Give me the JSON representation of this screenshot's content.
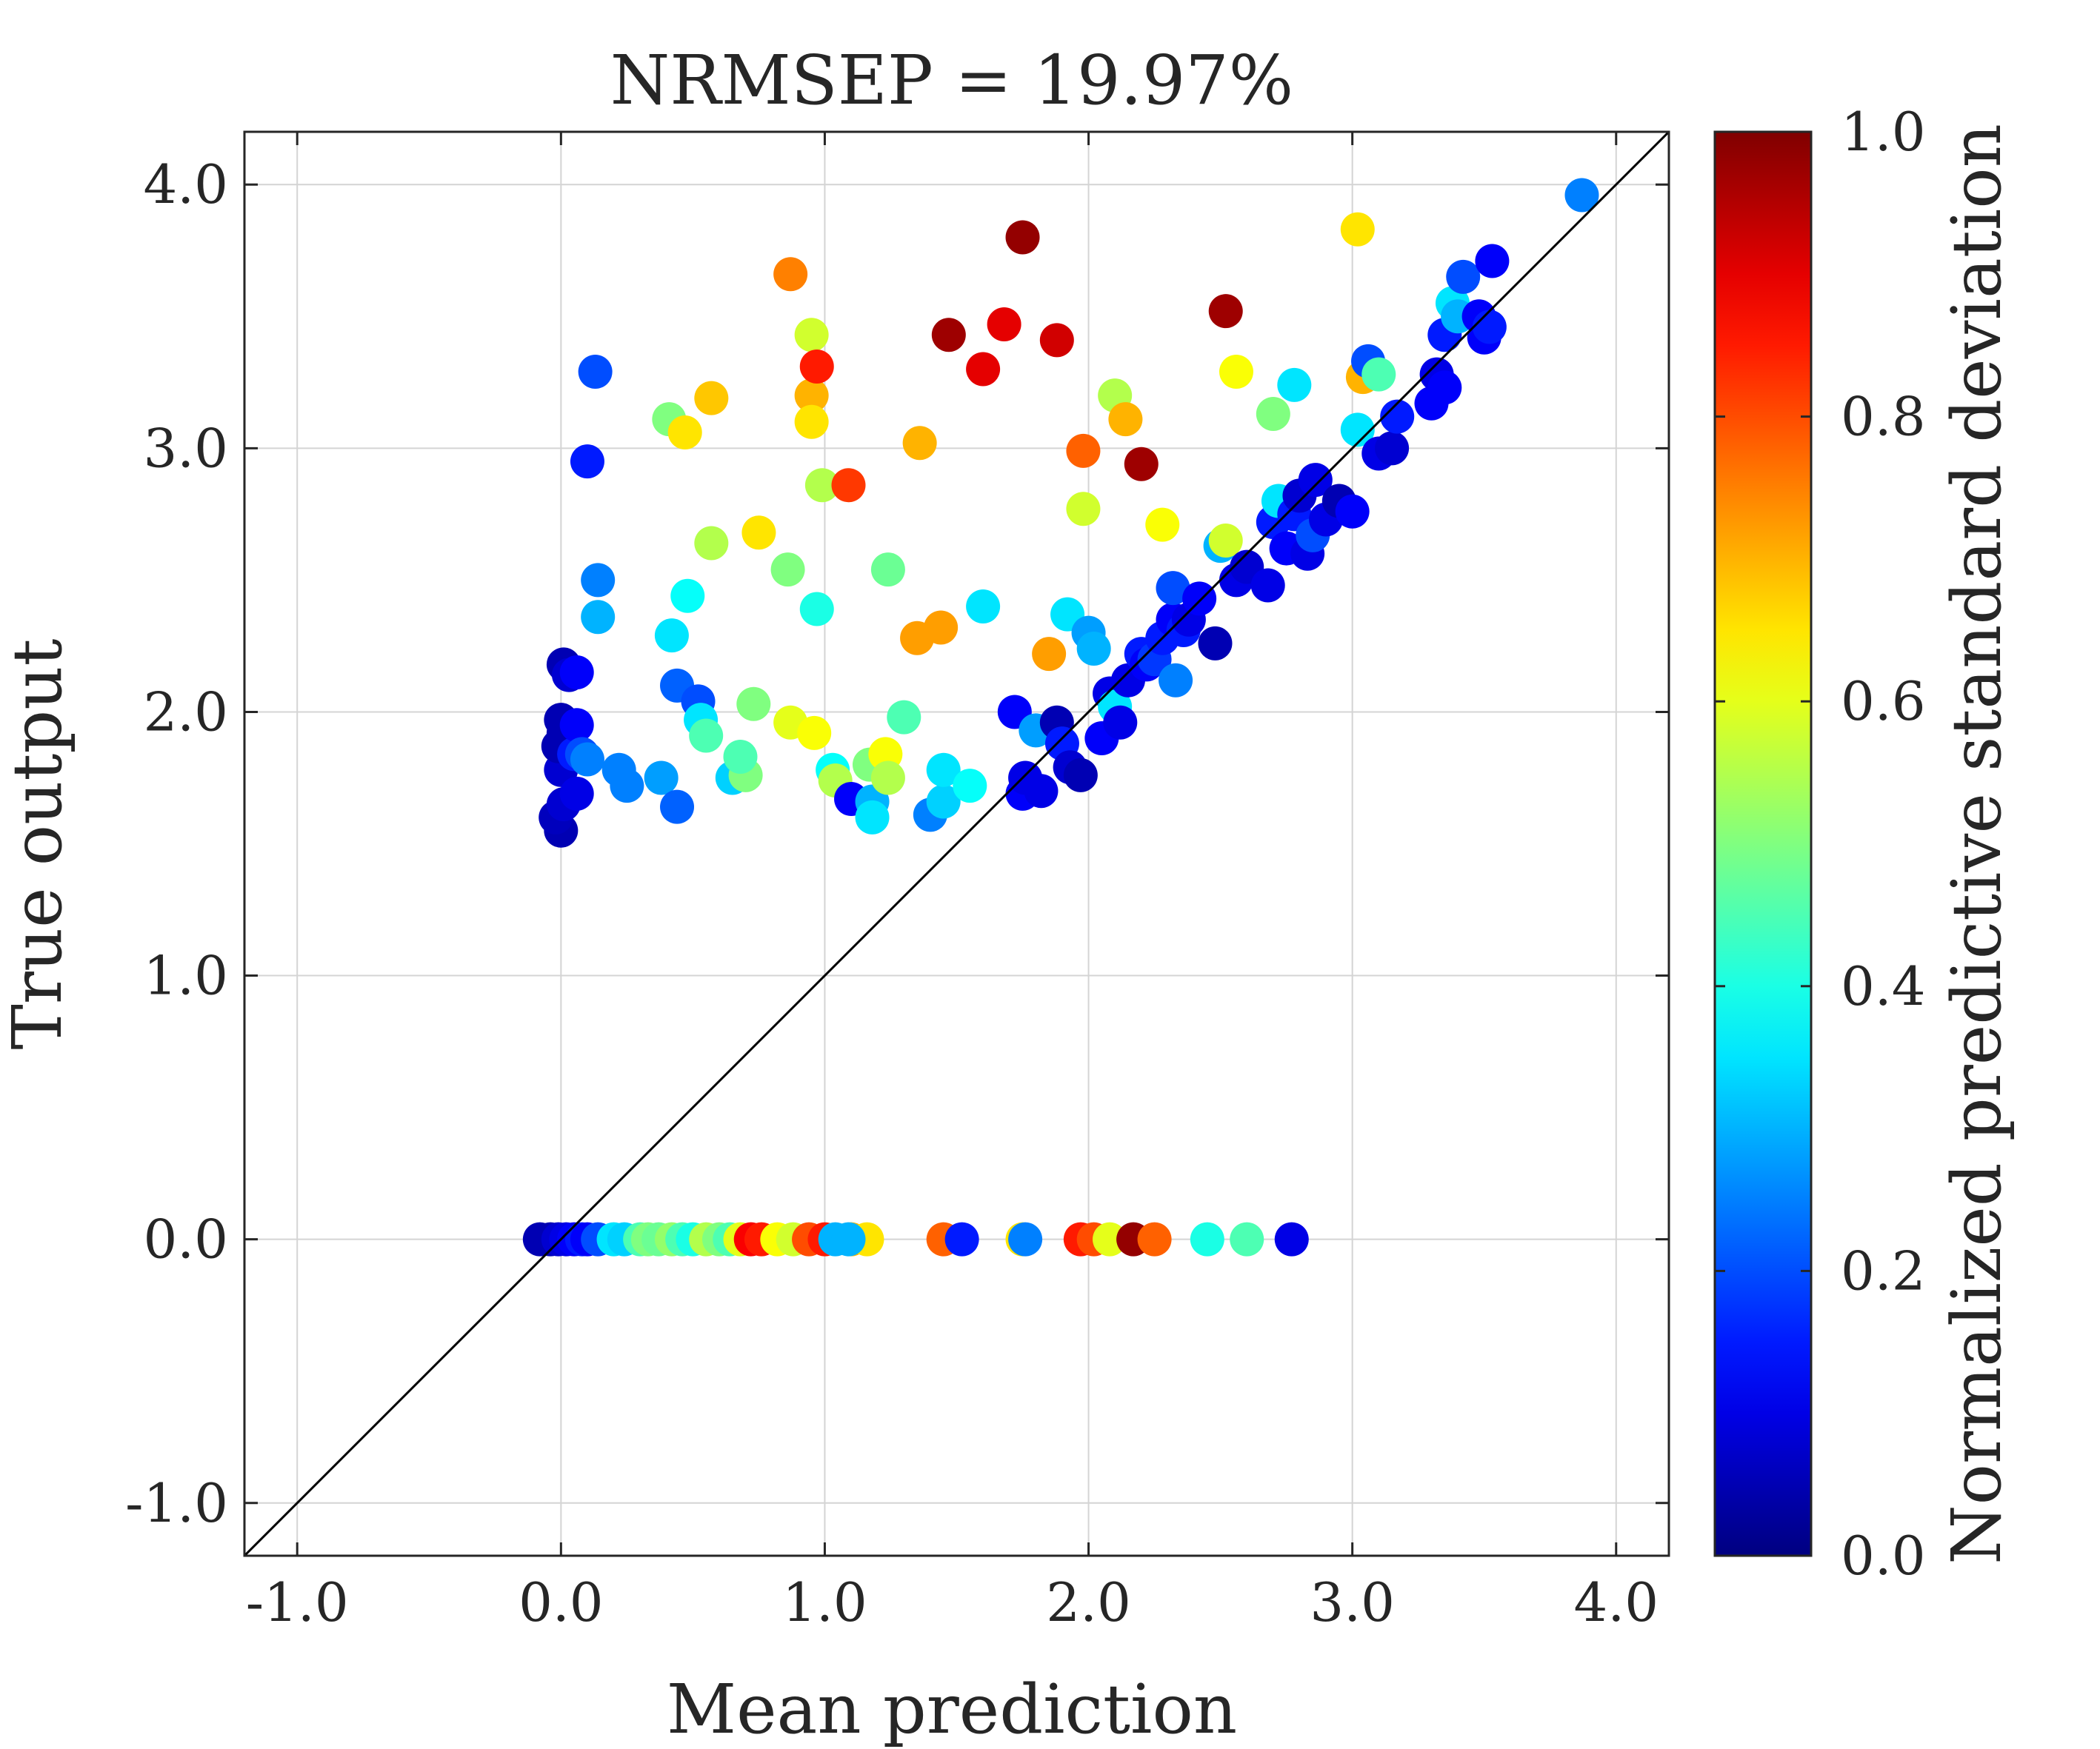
{
  "chart_data": {
    "type": "scatter",
    "title": "NRMSEP = 19.97%",
    "xlabel": "Mean prediction",
    "ylabel": "True output",
    "xlim": [
      -1.2,
      4.2
    ],
    "ylim": [
      -1.2,
      4.2
    ],
    "xticks": [
      -1,
      0,
      1,
      2,
      3,
      4
    ],
    "xtick_labels": [
      "-1.0",
      "0.0",
      "1.0",
      "2.0",
      "3.0",
      "4.0"
    ],
    "yticks": [
      -1,
      0,
      1,
      2,
      3,
      4
    ],
    "ytick_labels": [
      "-1.0",
      "0.0",
      "1.0",
      "2.0",
      "3.0",
      "4.0"
    ],
    "grid": true,
    "reference_line": "y = x",
    "colormap": "jet",
    "colorbar": {
      "label": "Normalized predictive standard deviation",
      "range": [
        0,
        1
      ],
      "ticks": [
        0,
        0.2,
        0.4,
        0.6,
        0.8,
        1.0
      ],
      "tick_labels": [
        "0.0",
        "0.2",
        "0.4",
        "0.6",
        "0.8",
        "1.0"
      ]
    },
    "points": [
      {
        "x": -0.08,
        "y": 0,
        "c": 0.05
      },
      {
        "x": -0.04,
        "y": 0,
        "c": 0.05
      },
      {
        "x": -0.01,
        "y": 0,
        "c": 0.08
      },
      {
        "x": 0.02,
        "y": 0,
        "c": 0.1
      },
      {
        "x": 0.05,
        "y": 0,
        "c": 0.12
      },
      {
        "x": 0.08,
        "y": 0,
        "c": 0.15
      },
      {
        "x": 0.1,
        "y": 0,
        "c": 0.12
      },
      {
        "x": 0.14,
        "y": 0,
        "c": 0.2
      },
      {
        "x": 0.2,
        "y": 0,
        "c": 0.35
      },
      {
        "x": 0.24,
        "y": 0,
        "c": 0.33
      },
      {
        "x": 0.3,
        "y": 0,
        "c": 0.45
      },
      {
        "x": 0.33,
        "y": 0,
        "c": 0.5
      },
      {
        "x": 0.37,
        "y": 0,
        "c": 0.48
      },
      {
        "x": 0.42,
        "y": 0,
        "c": 0.52
      },
      {
        "x": 0.46,
        "y": 0,
        "c": 0.45
      },
      {
        "x": 0.5,
        "y": 0,
        "c": 0.4
      },
      {
        "x": 0.55,
        "y": 0,
        "c": 0.55
      },
      {
        "x": 0.6,
        "y": 0,
        "c": 0.5
      },
      {
        "x": 0.64,
        "y": 0,
        "c": 0.45
      },
      {
        "x": 0.68,
        "y": 0,
        "c": 0.6
      },
      {
        "x": 0.72,
        "y": 0,
        "c": 0.88
      },
      {
        "x": 0.76,
        "y": 0,
        "c": 0.85
      },
      {
        "x": 0.82,
        "y": 0,
        "c": 0.62
      },
      {
        "x": 0.88,
        "y": 0,
        "c": 0.58
      },
      {
        "x": 0.94,
        "y": 0,
        "c": 0.8
      },
      {
        "x": 1.0,
        "y": 0,
        "c": 0.85
      },
      {
        "x": 1.04,
        "y": 0,
        "c": 0.3
      },
      {
        "x": 1.1,
        "y": 0,
        "c": 0.7
      },
      {
        "x": 1.16,
        "y": 0,
        "c": 0.65
      },
      {
        "x": 1.09,
        "y": 0,
        "c": 0.3
      },
      {
        "x": 1.45,
        "y": 0,
        "c": 0.78
      },
      {
        "x": 1.52,
        "y": 0,
        "c": 0.15
      },
      {
        "x": 1.75,
        "y": 0,
        "c": 0.65
      },
      {
        "x": 1.76,
        "y": 0,
        "c": 0.25
      },
      {
        "x": 1.97,
        "y": 0,
        "c": 0.85
      },
      {
        "x": 2.02,
        "y": 0,
        "c": 0.8
      },
      {
        "x": 2.08,
        "y": 0,
        "c": 0.6
      },
      {
        "x": 2.17,
        "y": 0,
        "c": 0.98
      },
      {
        "x": 2.25,
        "y": 0,
        "c": 0.78
      },
      {
        "x": 2.45,
        "y": 0,
        "c": 0.4
      },
      {
        "x": 2.6,
        "y": 0,
        "c": 0.45
      },
      {
        "x": 2.77,
        "y": 0,
        "c": 0.1
      },
      {
        "x": 0.0,
        "y": 1.55,
        "c": 0.05
      },
      {
        "x": -0.02,
        "y": 1.6,
        "c": 0.06
      },
      {
        "x": 0.01,
        "y": 1.65,
        "c": 0.08
      },
      {
        "x": 0.0,
        "y": 1.78,
        "c": 0.08
      },
      {
        "x": -0.01,
        "y": 1.87,
        "c": 0.05
      },
      {
        "x": 0.01,
        "y": 1.92,
        "c": 0.05
      },
      {
        "x": 0.0,
        "y": 1.97,
        "c": 0.05
      },
      {
        "x": 0.06,
        "y": 1.69,
        "c": 0.1
      },
      {
        "x": 0.05,
        "y": 1.84,
        "c": 0.15
      },
      {
        "x": 0.06,
        "y": 1.95,
        "c": 0.12
      },
      {
        "x": 0.08,
        "y": 1.84,
        "c": 0.2
      },
      {
        "x": 0.01,
        "y": 2.18,
        "c": 0.05
      },
      {
        "x": 0.03,
        "y": 2.14,
        "c": 0.08
      },
      {
        "x": 0.06,
        "y": 2.15,
        "c": 0.12
      },
      {
        "x": 0.1,
        "y": 1.82,
        "c": 0.25
      },
      {
        "x": 0.22,
        "y": 1.78,
        "c": 0.25
      },
      {
        "x": 0.25,
        "y": 1.72,
        "c": 0.25
      },
      {
        "x": 0.38,
        "y": 1.75,
        "c": 0.28
      },
      {
        "x": 0.44,
        "y": 1.64,
        "c": 0.22
      },
      {
        "x": 0.44,
        "y": 2.1,
        "c": 0.22
      },
      {
        "x": 0.42,
        "y": 2.29,
        "c": 0.35
      },
      {
        "x": 0.48,
        "y": 2.44,
        "c": 0.38
      },
      {
        "x": 0.52,
        "y": 2.04,
        "c": 0.2
      },
      {
        "x": 0.53,
        "y": 1.97,
        "c": 0.35
      },
      {
        "x": 0.55,
        "y": 1.91,
        "c": 0.45
      },
      {
        "x": 0.57,
        "y": 2.64,
        "c": 0.55
      },
      {
        "x": 0.65,
        "y": 1.75,
        "c": 0.33
      },
      {
        "x": 0.7,
        "y": 1.76,
        "c": 0.5
      },
      {
        "x": 0.68,
        "y": 1.83,
        "c": 0.45
      },
      {
        "x": 0.73,
        "y": 2.03,
        "c": 0.5
      },
      {
        "x": 0.75,
        "y": 2.68,
        "c": 0.65
      },
      {
        "x": 0.87,
        "y": 1.96,
        "c": 0.6
      },
      {
        "x": 0.86,
        "y": 2.54,
        "c": 0.5
      },
      {
        "x": 0.96,
        "y": 1.92,
        "c": 0.62
      },
      {
        "x": 0.97,
        "y": 2.39,
        "c": 0.4
      },
      {
        "x": 1.03,
        "y": 1.78,
        "c": 0.38
      },
      {
        "x": 1.04,
        "y": 1.74,
        "c": 0.55
      },
      {
        "x": 1.1,
        "y": 1.67,
        "c": 0.12
      },
      {
        "x": 1.17,
        "y": 1.8,
        "c": 0.5
      },
      {
        "x": 1.18,
        "y": 1.66,
        "c": 0.3
      },
      {
        "x": 1.18,
        "y": 1.6,
        "c": 0.35
      },
      {
        "x": 1.23,
        "y": 1.84,
        "c": 0.62
      },
      {
        "x": 1.24,
        "y": 1.75,
        "c": 0.55
      },
      {
        "x": 1.24,
        "y": 2.54,
        "c": 0.48
      },
      {
        "x": 1.3,
        "y": 1.98,
        "c": 0.45
      },
      {
        "x": 1.35,
        "y": 2.28,
        "c": 0.72
      },
      {
        "x": 1.4,
        "y": 1.61,
        "c": 0.25
      },
      {
        "x": 1.44,
        "y": 2.32,
        "c": 0.72
      },
      {
        "x": 1.45,
        "y": 1.66,
        "c": 0.33
      },
      {
        "x": 1.45,
        "y": 1.78,
        "c": 0.35
      },
      {
        "x": 1.55,
        "y": 1.72,
        "c": 0.38
      },
      {
        "x": 1.6,
        "y": 2.4,
        "c": 0.35
      },
      {
        "x": 1.72,
        "y": 2.0,
        "c": 0.12
      },
      {
        "x": 1.75,
        "y": 1.69,
        "c": 0.12
      },
      {
        "x": 1.76,
        "y": 1.75,
        "c": 0.1
      },
      {
        "x": 1.8,
        "y": 1.93,
        "c": 0.28
      },
      {
        "x": 1.82,
        "y": 1.7,
        "c": 0.1
      },
      {
        "x": 1.85,
        "y": 2.22,
        "c": 0.72
      },
      {
        "x": 1.88,
        "y": 1.96,
        "c": 0.05
      },
      {
        "x": 1.9,
        "y": 1.88,
        "c": 0.15
      },
      {
        "x": 1.92,
        "y": 2.37,
        "c": 0.35
      },
      {
        "x": 1.93,
        "y": 1.79,
        "c": 0.08
      },
      {
        "x": 1.97,
        "y": 1.76,
        "c": 0.05
      },
      {
        "x": 2.0,
        "y": 2.3,
        "c": 0.28
      },
      {
        "x": 2.02,
        "y": 2.24,
        "c": 0.3
      },
      {
        "x": 2.05,
        "y": 1.9,
        "c": 0.12
      },
      {
        "x": 2.08,
        "y": 2.07,
        "c": 0.1
      },
      {
        "x": 2.1,
        "y": 2.02,
        "c": 0.35
      },
      {
        "x": 2.12,
        "y": 1.96,
        "c": 0.1
      },
      {
        "x": 2.15,
        "y": 2.12,
        "c": 0.1
      },
      {
        "x": 2.2,
        "y": 2.22,
        "c": 0.15
      },
      {
        "x": 2.22,
        "y": 2.18,
        "c": 0.12
      },
      {
        "x": 2.25,
        "y": 2.2,
        "c": 0.18
      },
      {
        "x": 2.28,
        "y": 2.28,
        "c": 0.15
      },
      {
        "x": 2.32,
        "y": 2.35,
        "c": 0.12
      },
      {
        "x": 2.33,
        "y": 2.12,
        "c": 0.25
      },
      {
        "x": 2.32,
        "y": 2.47,
        "c": 0.2
      },
      {
        "x": 2.36,
        "y": 2.31,
        "c": 0.15
      },
      {
        "x": 2.38,
        "y": 2.35,
        "c": 0.1
      },
      {
        "x": 2.42,
        "y": 2.43,
        "c": 0.12
      },
      {
        "x": 2.48,
        "y": 2.26,
        "c": 0.05
      },
      {
        "x": 2.5,
        "y": 2.63,
        "c": 0.3
      },
      {
        "x": 2.52,
        "y": 2.65,
        "c": 0.58
      },
      {
        "x": 2.56,
        "y": 2.5,
        "c": 0.1
      },
      {
        "x": 2.6,
        "y": 2.55,
        "c": 0.08
      },
      {
        "x": 2.68,
        "y": 2.48,
        "c": 0.1
      },
      {
        "x": 2.7,
        "y": 2.72,
        "c": 0.15
      },
      {
        "x": 2.72,
        "y": 2.8,
        "c": 0.35
      },
      {
        "x": 2.75,
        "y": 2.62,
        "c": 0.12
      },
      {
        "x": 2.78,
        "y": 2.75,
        "c": 0.15
      },
      {
        "x": 2.8,
        "y": 2.82,
        "c": 0.08
      },
      {
        "x": 2.83,
        "y": 2.6,
        "c": 0.1
      },
      {
        "x": 2.85,
        "y": 2.67,
        "c": 0.2
      },
      {
        "x": 2.86,
        "y": 2.88,
        "c": 0.1
      },
      {
        "x": 2.9,
        "y": 2.73,
        "c": 0.1
      },
      {
        "x": 2.95,
        "y": 2.8,
        "c": 0.05
      },
      {
        "x": 3.0,
        "y": 2.76,
        "c": 0.12
      },
      {
        "x": 3.02,
        "y": 3.07,
        "c": 0.35
      },
      {
        "x": 3.04,
        "y": 3.27,
        "c": 0.7
      },
      {
        "x": 3.06,
        "y": 3.33,
        "c": 0.2
      },
      {
        "x": 3.1,
        "y": 3.28,
        "c": 0.45
      },
      {
        "x": 3.1,
        "y": 2.98,
        "c": 0.1
      },
      {
        "x": 3.15,
        "y": 3.0,
        "c": 0.08
      },
      {
        "x": 3.17,
        "y": 3.12,
        "c": 0.15
      },
      {
        "x": 3.3,
        "y": 3.17,
        "c": 0.12
      },
      {
        "x": 3.32,
        "y": 3.28,
        "c": 0.1
      },
      {
        "x": 3.35,
        "y": 3.23,
        "c": 0.12
      },
      {
        "x": 3.35,
        "y": 3.43,
        "c": 0.15
      },
      {
        "x": 3.38,
        "y": 3.55,
        "c": 0.35
      },
      {
        "x": 3.4,
        "y": 3.5,
        "c": 0.3
      },
      {
        "x": 3.42,
        "y": 3.65,
        "c": 0.2
      },
      {
        "x": 3.48,
        "y": 3.5,
        "c": 0.12
      },
      {
        "x": 3.5,
        "y": 3.42,
        "c": 0.12
      },
      {
        "x": 3.52,
        "y": 3.46,
        "c": 0.15
      },
      {
        "x": 3.53,
        "y": 3.71,
        "c": 0.12
      },
      {
        "x": 3.87,
        "y": 3.96,
        "c": 0.25
      },
      {
        "x": 0.13,
        "y": 3.29,
        "c": 0.2
      },
      {
        "x": 0.1,
        "y": 2.95,
        "c": 0.15
      },
      {
        "x": 0.14,
        "y": 2.5,
        "c": 0.25
      },
      {
        "x": 0.14,
        "y": 2.36,
        "c": 0.3
      },
      {
        "x": 0.41,
        "y": 3.11,
        "c": 0.5
      },
      {
        "x": 0.47,
        "y": 3.06,
        "c": 0.65
      },
      {
        "x": 0.57,
        "y": 3.19,
        "c": 0.68
      },
      {
        "x": 0.87,
        "y": 3.66,
        "c": 0.75
      },
      {
        "x": 0.95,
        "y": 3.43,
        "c": 0.58
      },
      {
        "x": 0.95,
        "y": 3.2,
        "c": 0.7
      },
      {
        "x": 0.95,
        "y": 3.1,
        "c": 0.65
      },
      {
        "x": 0.97,
        "y": 3.31,
        "c": 0.85
      },
      {
        "x": 0.99,
        "y": 2.86,
        "c": 0.55
      },
      {
        "x": 1.09,
        "y": 2.86,
        "c": 0.82
      },
      {
        "x": 1.36,
        "y": 3.02,
        "c": 0.7
      },
      {
        "x": 1.47,
        "y": 3.43,
        "c": 0.97
      },
      {
        "x": 1.6,
        "y": 3.3,
        "c": 0.9
      },
      {
        "x": 1.68,
        "y": 3.47,
        "c": 0.9
      },
      {
        "x": 1.75,
        "y": 3.8,
        "c": 0.98
      },
      {
        "x": 1.88,
        "y": 3.41,
        "c": 0.92
      },
      {
        "x": 1.98,
        "y": 2.99,
        "c": 0.78
      },
      {
        "x": 1.98,
        "y": 2.77,
        "c": 0.58
      },
      {
        "x": 2.1,
        "y": 3.2,
        "c": 0.55
      },
      {
        "x": 2.14,
        "y": 3.11,
        "c": 0.7
      },
      {
        "x": 2.2,
        "y": 2.94,
        "c": 0.97
      },
      {
        "x": 2.28,
        "y": 2.71,
        "c": 0.62
      },
      {
        "x": 2.52,
        "y": 3.52,
        "c": 0.97
      },
      {
        "x": 2.56,
        "y": 3.29,
        "c": 0.62
      },
      {
        "x": 2.7,
        "y": 3.13,
        "c": 0.5
      },
      {
        "x": 2.78,
        "y": 3.24,
        "c": 0.35
      },
      {
        "x": 3.02,
        "y": 3.83,
        "c": 0.65
      }
    ]
  }
}
